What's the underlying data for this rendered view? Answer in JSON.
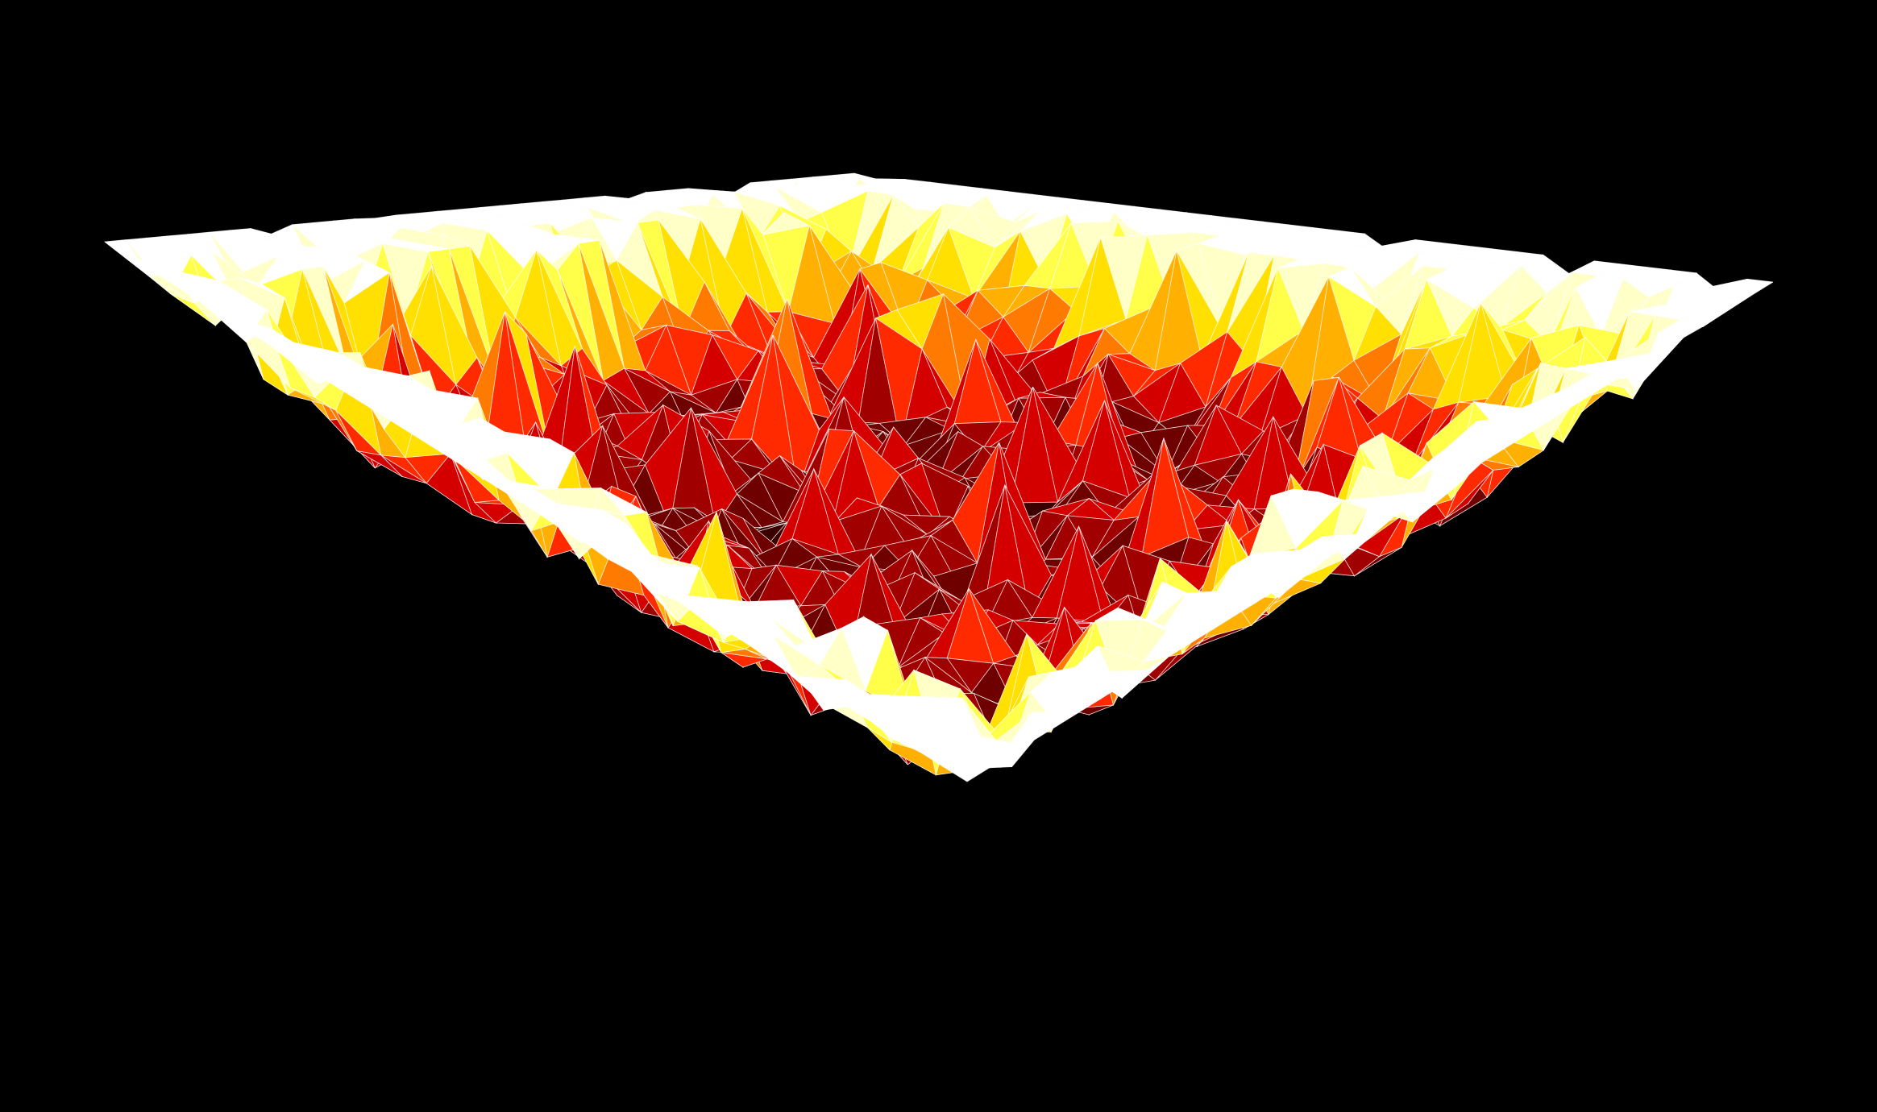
{
  "scene": {
    "background_color": "#000000",
    "wireframe_color": "#ffffff",
    "description_kind": "3d-triangulated-terrain-heightmap",
    "colormap": [
      "#3a0000",
      "#6e0000",
      "#a00000",
      "#d40000",
      "#ff2a00",
      "#ff7a00",
      "#ffb000",
      "#ffe000",
      "#ffff4a",
      "#ffffc8",
      "#ffffff"
    ],
    "grid_size": 36,
    "random_seed": 7
  }
}
